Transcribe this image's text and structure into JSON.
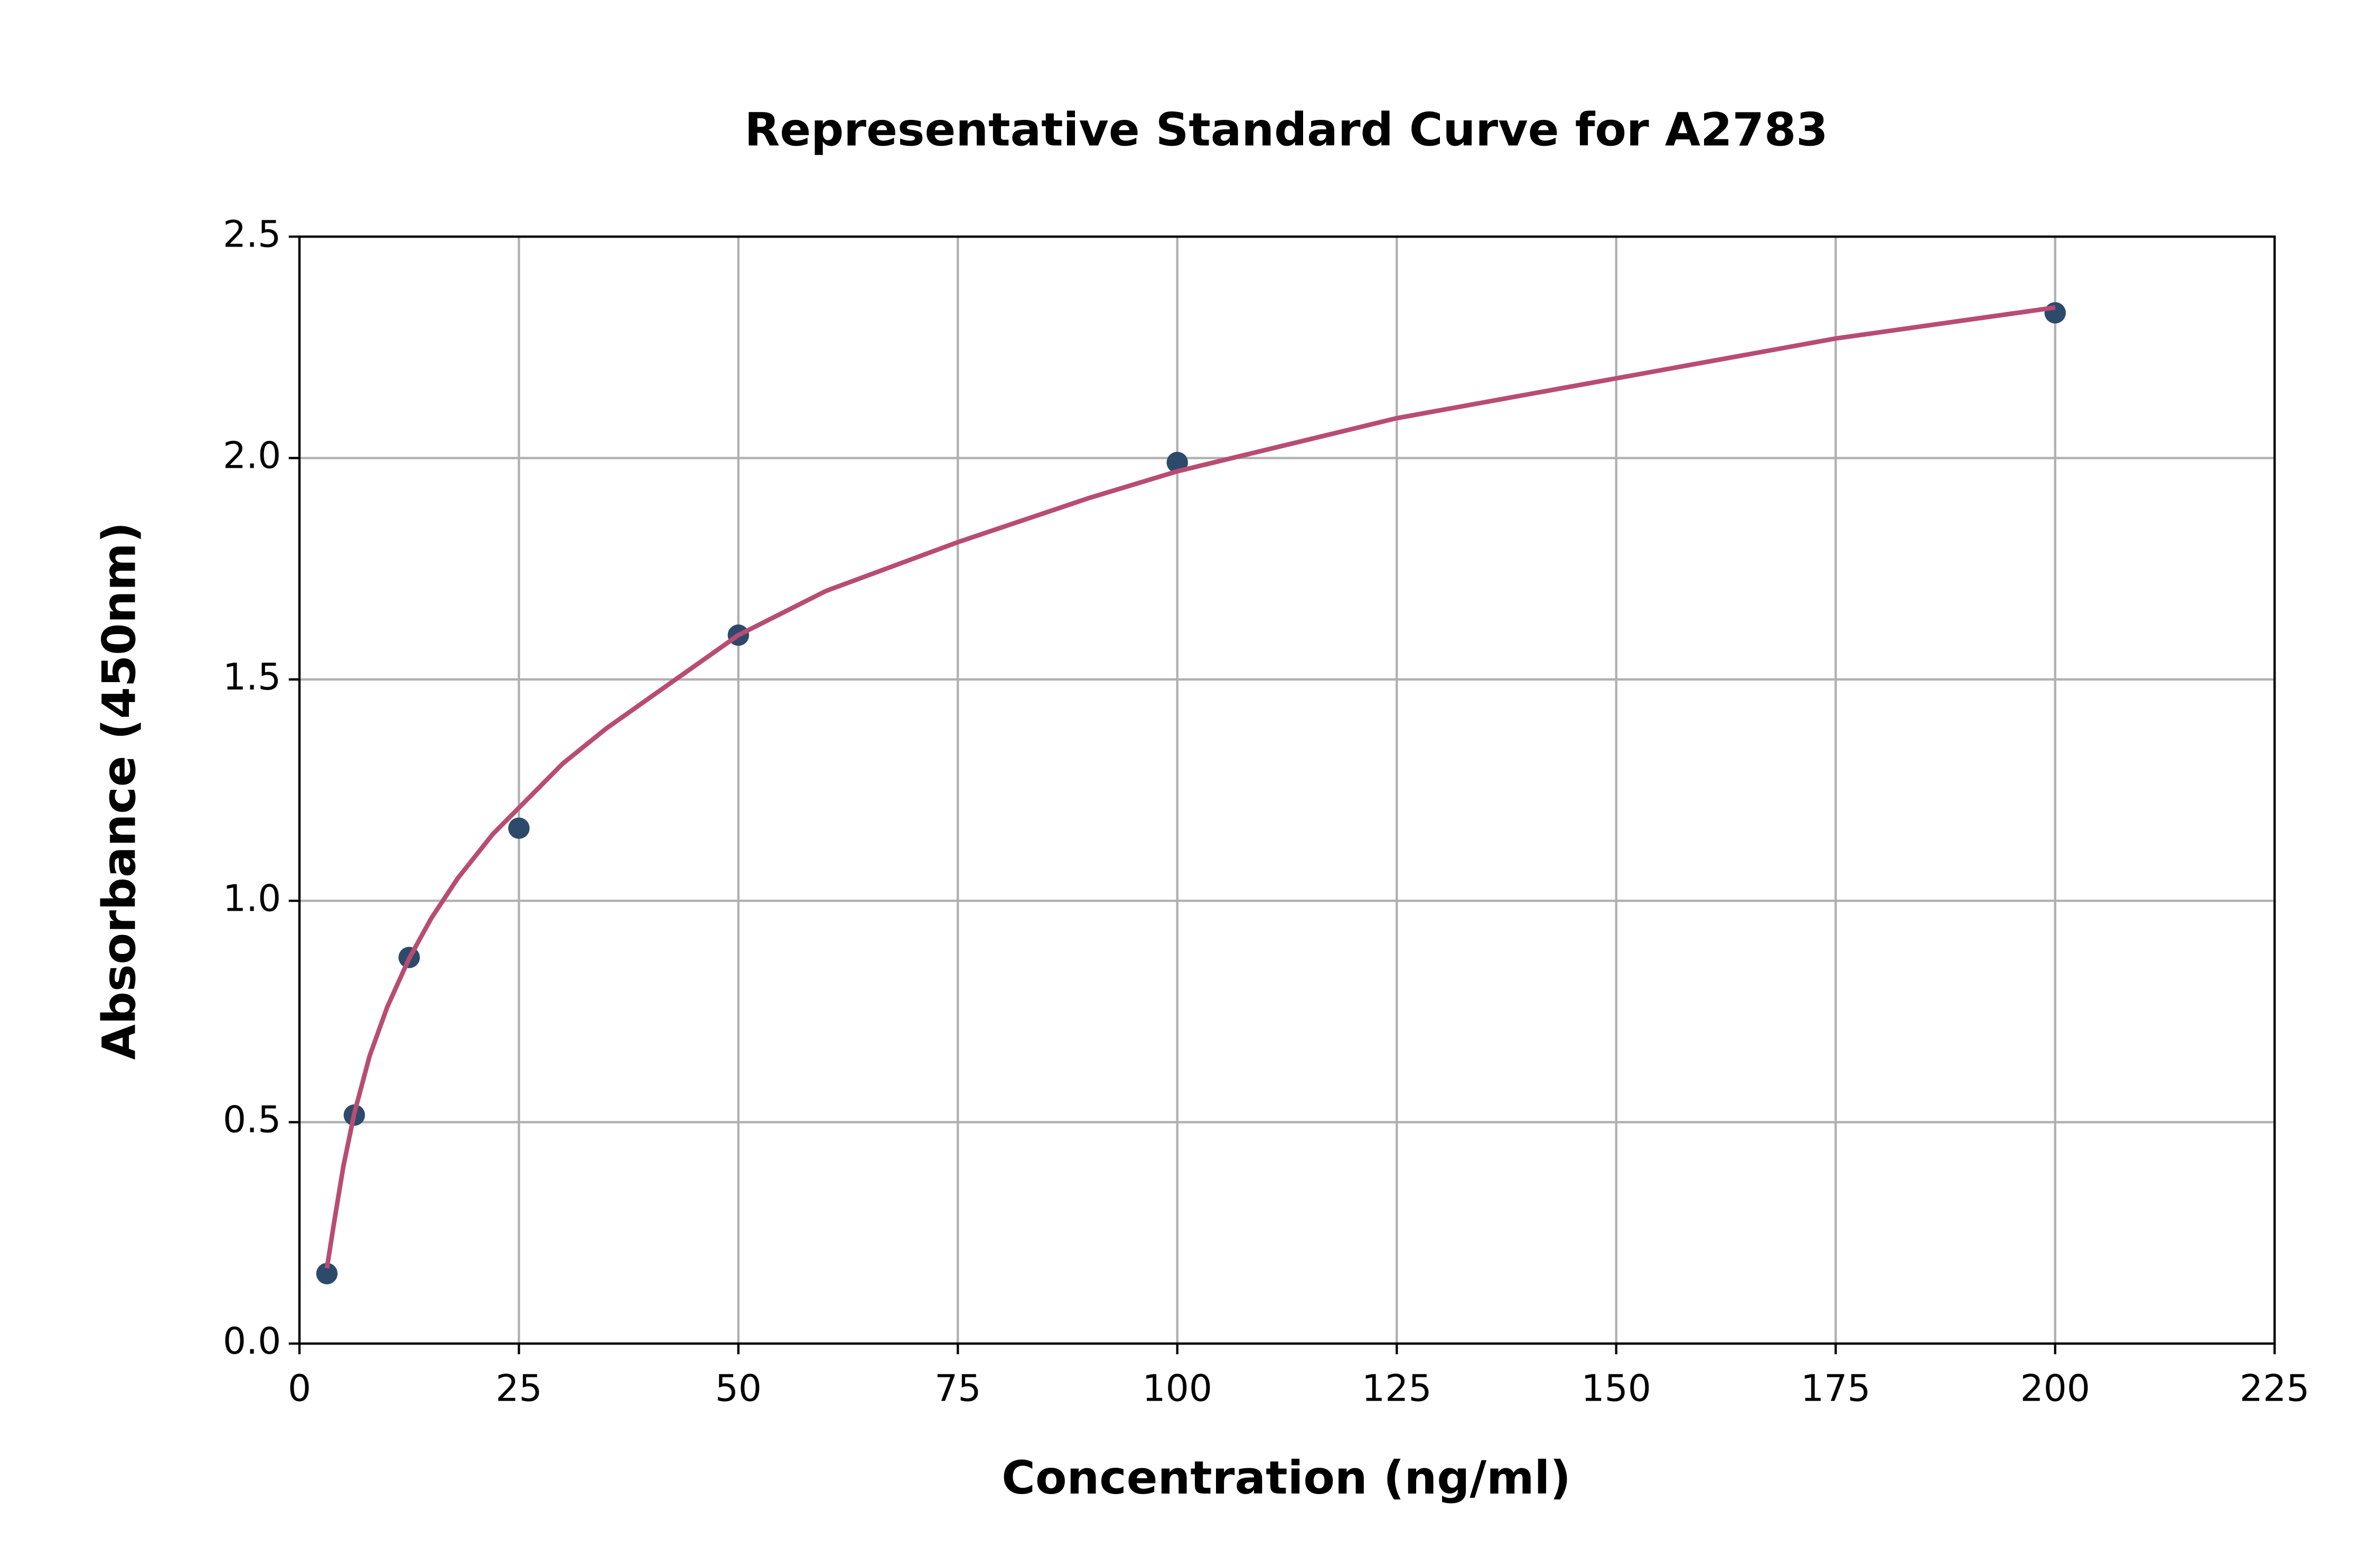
{
  "chart_data": {
    "type": "scatter",
    "title": "Representative Standard Curve for A2783",
    "x_label": "Concentration (ng/ml)",
    "y_label": "Absorbance (450nm)",
    "xlim": [
      0,
      225
    ],
    "ylim": [
      0,
      2.5
    ],
    "xticks": [
      0,
      25,
      50,
      75,
      100,
      125,
      150,
      175,
      200,
      225
    ],
    "yticks": [
      {
        "value": 0,
        "label": "0.0"
      },
      {
        "value": 0.5,
        "label": "0.5"
      },
      {
        "value": 1,
        "label": "1.0"
      },
      {
        "value": 1.5,
        "label": "1.5"
      },
      {
        "value": 2,
        "label": "2.0"
      },
      {
        "value": 2.5,
        "label": "2.5"
      }
    ],
    "grid": true,
    "series": [
      {
        "type": "scatter",
        "color": "#2d4a6b",
        "x": [
          3.125,
          6.25,
          12.5,
          25,
          50,
          100,
          200
        ],
        "values": [
          0.158,
          0.516,
          0.872,
          1.164,
          1.6,
          1.99,
          2.328
        ]
      },
      {
        "type": "line",
        "color": "#b84c72",
        "x": [
          3.125,
          4,
          5,
          6.25,
          8,
          10,
          12.5,
          15,
          18,
          22,
          25,
          30,
          35,
          40,
          50,
          60,
          75,
          90,
          100,
          125,
          150,
          175,
          200
        ],
        "values": [
          0.17,
          0.28,
          0.4,
          0.52,
          0.65,
          0.76,
          0.87,
          0.96,
          1.05,
          1.15,
          1.21,
          1.31,
          1.39,
          1.46,
          1.6,
          1.7,
          1.81,
          1.91,
          1.97,
          2.09,
          2.18,
          2.27,
          2.34
        ]
      }
    ]
  }
}
